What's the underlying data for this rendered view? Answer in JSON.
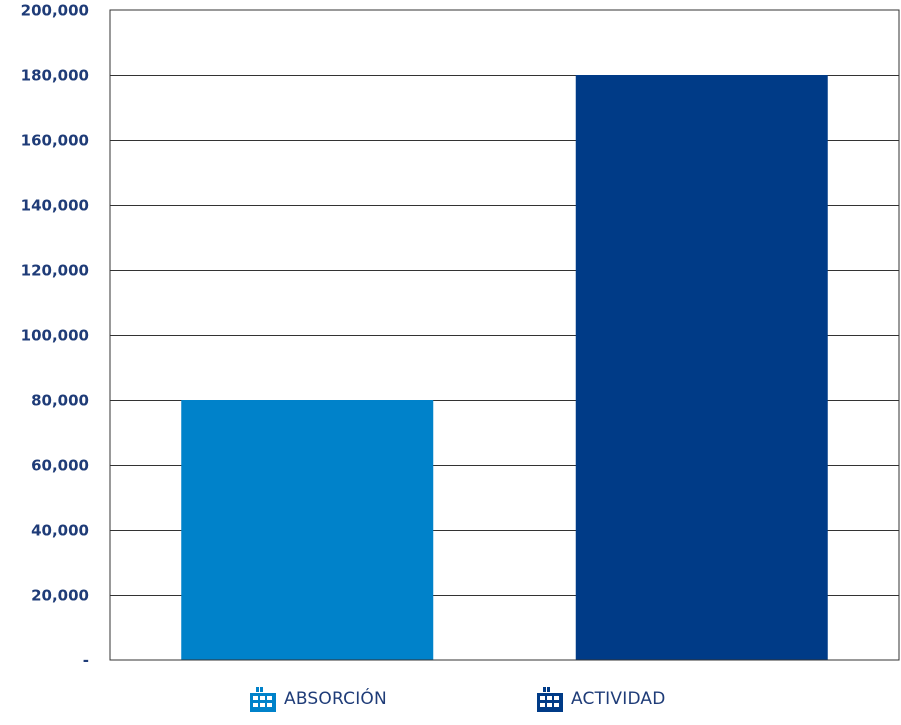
{
  "chart_data": {
    "type": "bar",
    "categories": [
      "ABSORCIÓN",
      "ACTIVIDAD"
    ],
    "values": [
      80000,
      180000
    ],
    "colors": [
      "#0082ca",
      "#003b87"
    ],
    "ylim": [
      0,
      200000
    ],
    "yticks": [
      0,
      20000,
      40000,
      60000,
      80000,
      100000,
      120000,
      140000,
      160000,
      180000,
      200000
    ],
    "ytick_labels": [
      "-",
      "20,000",
      "40,000",
      "60,000",
      "80,000",
      "100,000",
      "120,000",
      "140,000",
      "160,000",
      "180,000",
      "200,000"
    ],
    "grid": true,
    "legend_position": "bottom",
    "title": "",
    "xlabel": "",
    "ylabel": ""
  },
  "legend": {
    "items": [
      {
        "label": "ABSORCIÓN",
        "color": "#0082ca",
        "icon": "building-icon"
      },
      {
        "label": "ACTIVIDAD",
        "color": "#003b87",
        "icon": "building-icon"
      }
    ]
  },
  "colors": {
    "axis": "#333333",
    "tick_text": "#1f3c78",
    "grid": "#333333"
  }
}
